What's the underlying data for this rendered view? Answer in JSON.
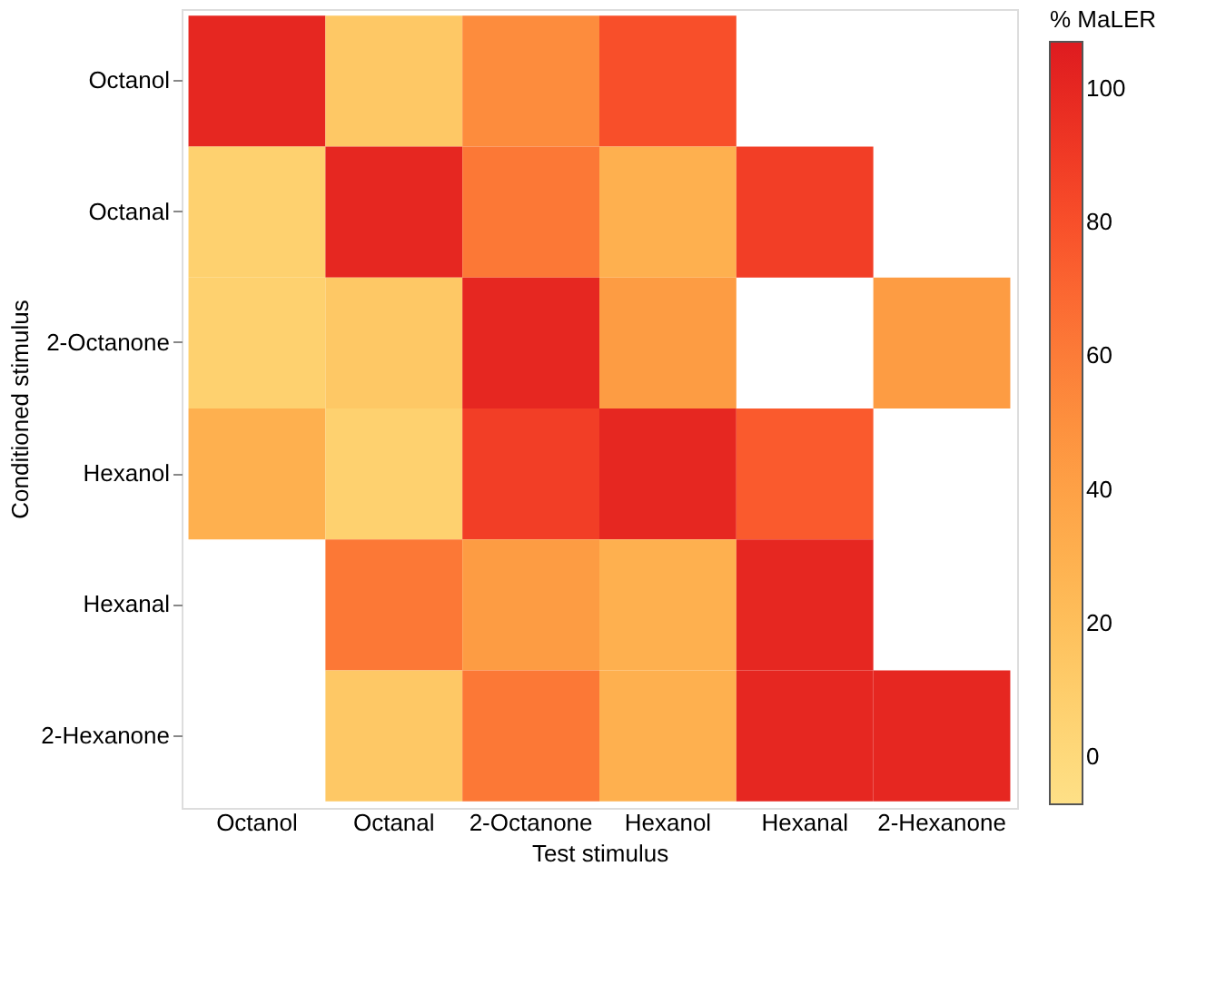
{
  "chart_data": {
    "type": "heatmap",
    "xlabel": "Test stimulus",
    "ylabel": "Conditioned stimulus",
    "legend_title": "% MaLER",
    "categories": [
      "Octanol",
      "Octanal",
      "2-Octanone",
      "Hexanol",
      "Hexanal",
      "2-Hexanone"
    ],
    "y_categories": [
      "Octanol",
      "Octanal",
      "2-Octanone",
      "Hexanol",
      "Hexanal",
      "2-Hexanone"
    ],
    "cells": [
      [
        100,
        14,
        52,
        80,
        null,
        null
      ],
      [
        7,
        100,
        62,
        30,
        88,
        null
      ],
      [
        7,
        14,
        100,
        43,
        null,
        43
      ],
      [
        30,
        7,
        88,
        100,
        75,
        null
      ],
      [
        null,
        62,
        43,
        30,
        100,
        null
      ],
      [
        null,
        14,
        62,
        30,
        100,
        100
      ]
    ],
    "clim": [
      -7,
      107
    ],
    "cticks": [
      0,
      20,
      40,
      60,
      80,
      100
    ]
  }
}
